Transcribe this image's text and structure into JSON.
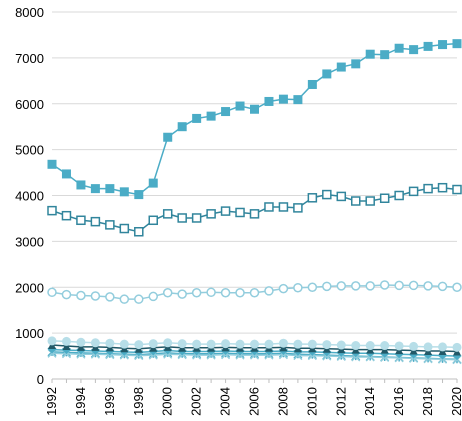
{
  "chart_data": {
    "type": "line",
    "title": "",
    "xlabel": "",
    "ylabel": "",
    "ylim": [
      0,
      8000
    ],
    "y_ticks": [
      "0",
      "1000",
      "2000",
      "3000",
      "4000",
      "5000",
      "6000",
      "7000",
      "8000"
    ],
    "x_ticks": [
      "1992",
      "1994",
      "1996",
      "1998",
      "2000",
      "2002",
      "2004",
      "2006",
      "2008",
      "2010",
      "2012",
      "2014",
      "2016",
      "2018",
      "2020"
    ],
    "grid": "horizontal",
    "legend": "none",
    "x": [
      1992,
      1993,
      1994,
      1995,
      1996,
      1997,
      1998,
      1999,
      2000,
      2001,
      2002,
      2003,
      2004,
      2005,
      2006,
      2007,
      2008,
      2009,
      2010,
      2011,
      2012,
      2013,
      2014,
      2015,
      2016,
      2017,
      2018,
      2019,
      2020
    ],
    "series": [
      {
        "marker": "square-filled",
        "color": "#4bacc6",
        "values": [
          4680,
          4470,
          4230,
          4150,
          4150,
          4080,
          4020,
          4270,
          5270,
          5500,
          5680,
          5730,
          5830,
          5950,
          5880,
          6050,
          6100,
          6090,
          6420,
          6650,
          6800,
          6870,
          7080,
          7070,
          7210,
          7180,
          7250,
          7290,
          7310
        ]
      },
      {
        "marker": "square-open",
        "color": "#31859c",
        "values": [
          3670,
          3560,
          3460,
          3430,
          3360,
          3280,
          3210,
          3460,
          3600,
          3510,
          3510,
          3600,
          3660,
          3630,
          3600,
          3750,
          3750,
          3730,
          3950,
          4020,
          3980,
          3880,
          3880,
          3940,
          4000,
          4090,
          4150,
          4170,
          4130
        ]
      },
      {
        "marker": "circle-open",
        "color": "#93cddd",
        "values": [
          1890,
          1840,
          1820,
          1810,
          1790,
          1740,
          1740,
          1800,
          1880,
          1850,
          1880,
          1890,
          1880,
          1880,
          1880,
          1920,
          1970,
          1990,
          2000,
          2020,
          2030,
          2030,
          2030,
          2050,
          2040,
          2040,
          2030,
          2020,
          2000
        ]
      },
      {
        "marker": "circle-filled",
        "color": "#b7dee8",
        "values": [
          830,
          820,
          800,
          790,
          780,
          760,
          750,
          770,
          790,
          770,
          760,
          760,
          770,
          760,
          760,
          760,
          780,
          760,
          760,
          750,
          740,
          730,
          730,
          730,
          720,
          710,
          700,
          700,
          690
        ]
      },
      {
        "marker": "triangle-filled",
        "color": "#215968",
        "values": [
          740,
          720,
          700,
          700,
          690,
          670,
          660,
          680,
          700,
          680,
          680,
          680,
          690,
          680,
          680,
          680,
          690,
          670,
          670,
          660,
          650,
          640,
          640,
          640,
          630,
          620,
          610,
          610,
          600
        ]
      },
      {
        "marker": "diamond-filled",
        "color": "#4bacc6",
        "values": [
          640,
          630,
          620,
          610,
          600,
          590,
          580,
          600,
          620,
          600,
          600,
          600,
          610,
          600,
          600,
          600,
          610,
          590,
          590,
          580,
          570,
          560,
          560,
          550,
          540,
          530,
          520,
          510,
          500
        ]
      },
      {
        "marker": "x",
        "color": "#92cddc",
        "values": [
          560,
          550,
          540,
          540,
          530,
          520,
          510,
          520,
          540,
          530,
          520,
          520,
          530,
          520,
          520,
          520,
          530,
          510,
          510,
          500,
          490,
          480,
          480,
          470,
          460,
          450,
          440,
          430,
          420
        ]
      },
      {
        "marker": "star",
        "color": "#4bacc6",
        "values": [
          590,
          580,
          570,
          560,
          550,
          540,
          530,
          550,
          570,
          550,
          550,
          550,
          560,
          550,
          550,
          550,
          560,
          540,
          530,
          520,
          510,
          500,
          490,
          480,
          470,
          460,
          450,
          440,
          430
        ]
      }
    ]
  }
}
